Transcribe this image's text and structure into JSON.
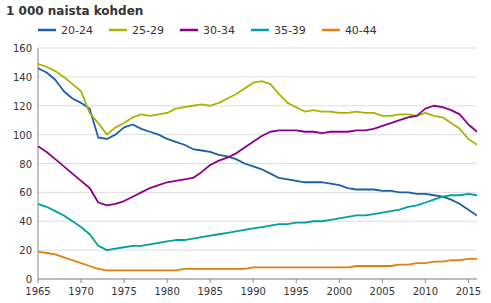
{
  "chart_data": {
    "type": "line",
    "title": "1 000 naista kohden",
    "x": [
      1965,
      1966,
      1967,
      1968,
      1969,
      1970,
      1971,
      1972,
      1973,
      1974,
      1975,
      1976,
      1977,
      1978,
      1979,
      1980,
      1981,
      1982,
      1983,
      1984,
      1985,
      1986,
      1987,
      1988,
      1989,
      1990,
      1991,
      1992,
      1993,
      1994,
      1995,
      1996,
      1997,
      1998,
      1999,
      2000,
      2001,
      2002,
      2003,
      2004,
      2005,
      2006,
      2007,
      2008,
      2009,
      2010,
      2011,
      2012,
      2013,
      2014,
      2015,
      2016
    ],
    "series": [
      {
        "name": "20-24",
        "color": "#1a5fa8",
        "values": [
          146,
          143,
          138,
          130,
          125,
          122,
          118,
          98,
          97,
          100,
          105,
          107,
          104,
          102,
          100,
          97,
          95,
          93,
          90,
          89,
          88,
          86,
          85,
          83,
          80,
          78,
          76,
          73,
          70,
          69,
          68,
          67,
          67,
          67,
          66,
          65,
          63,
          62,
          62,
          62,
          61,
          61,
          60,
          60,
          59,
          59,
          58,
          57,
          55,
          52,
          48,
          44
        ]
      },
      {
        "name": "25-29",
        "color": "#a8b400",
        "values": [
          149,
          147,
          144,
          140,
          135,
          130,
          115,
          108,
          100,
          105,
          108,
          112,
          114,
          113,
          114,
          115,
          118,
          119,
          120,
          121,
          120,
          122,
          125,
          128,
          132,
          136,
          137,
          135,
          128,
          122,
          119,
          116,
          117,
          116,
          116,
          115,
          115,
          116,
          115,
          115,
          113,
          113,
          114,
          114,
          113,
          115,
          113,
          112,
          108,
          104,
          97,
          93
        ]
      },
      {
        "name": "30-34",
        "color": "#8b008b",
        "values": [
          92,
          88,
          83,
          78,
          73,
          68,
          63,
          53,
          51,
          52,
          54,
          57,
          60,
          63,
          65,
          67,
          68,
          69,
          70,
          74,
          79,
          82,
          84,
          87,
          91,
          95,
          99,
          102,
          103,
          103,
          103,
          102,
          102,
          101,
          102,
          102,
          102,
          103,
          103,
          104,
          106,
          108,
          110,
          112,
          113,
          118,
          120,
          119,
          117,
          114,
          107,
          102
        ]
      },
      {
        "name": "35-39",
        "color": "#00a0a0",
        "values": [
          52,
          50,
          47,
          44,
          40,
          36,
          31,
          23,
          20,
          21,
          22,
          23,
          23,
          24,
          25,
          26,
          27,
          27,
          28,
          29,
          30,
          31,
          32,
          33,
          34,
          35,
          36,
          37,
          38,
          38,
          39,
          39,
          40,
          40,
          41,
          42,
          43,
          44,
          44,
          45,
          46,
          47,
          48,
          50,
          51,
          53,
          55,
          57,
          58,
          58,
          59,
          58
        ]
      },
      {
        "name": "40-44",
        "color": "#e08010",
        "values": [
          19,
          18,
          17,
          15,
          13,
          11,
          9,
          7,
          6,
          6,
          6,
          6,
          6,
          6,
          6,
          6,
          6,
          7,
          7,
          7,
          7,
          7,
          7,
          7,
          7,
          8,
          8,
          8,
          8,
          8,
          8,
          8,
          8,
          8,
          8,
          8,
          8,
          9,
          9,
          9,
          9,
          9,
          10,
          10,
          11,
          11,
          12,
          12,
          13,
          13,
          14,
          14
        ]
      }
    ],
    "xlim": [
      1965,
      2016
    ],
    "ylim": [
      0,
      160
    ],
    "xticks": [
      1965,
      1970,
      1975,
      1980,
      1985,
      1990,
      1995,
      2000,
      2005,
      2010,
      2015
    ],
    "yticks": [
      0,
      20,
      40,
      60,
      80,
      100,
      120,
      140,
      160
    ],
    "grid": "y",
    "legend": "top"
  }
}
